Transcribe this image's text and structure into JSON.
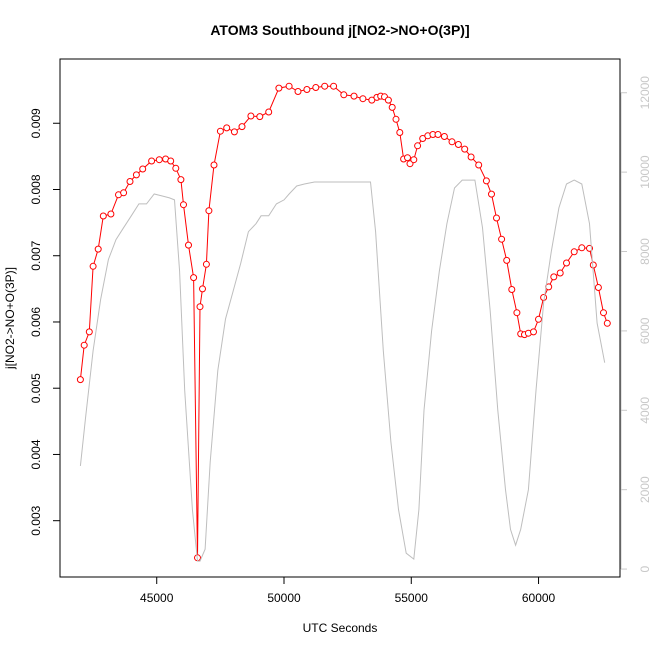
{
  "chart_data": {
    "type": "line",
    "title": "ATOM3 Southbound j[NO2->NO+O(3P)]",
    "xlabel": "UTC Seconds",
    "ylabel": "j[NO2->NO+O(3P)]",
    "y2label": "",
    "xlim": [
      41200,
      63200
    ],
    "ylim": [
      0.00215,
      0.00997
    ],
    "y2lim": [
      -200,
      12850
    ],
    "x_ticks": [
      45000,
      50000,
      55000,
      60000
    ],
    "y_ticks": [
      0.003,
      0.004,
      0.005,
      0.006,
      0.007,
      0.008,
      0.009
    ],
    "y_tick_labels": [
      "0.003",
      "0.004",
      "0.005",
      "0.006",
      "0.007",
      "0.008",
      "0.009"
    ],
    "y2_ticks": [
      0,
      2000,
      4000,
      6000,
      8000,
      10000,
      12000
    ],
    "grid": false,
    "legend": "none",
    "colors": {
      "primary": "#ff0000",
      "secondary": "#bebebe"
    },
    "series": [
      {
        "axis": "left",
        "style": "line+circles",
        "color": "#ff0000",
        "points": [
          [
            42000,
            0.00513
          ],
          [
            42150,
            0.00565
          ],
          [
            42350,
            0.00585
          ],
          [
            42500,
            0.00684
          ],
          [
            42700,
            0.0071
          ],
          [
            42900,
            0.0076
          ],
          [
            43200,
            0.00763
          ],
          [
            43500,
            0.00792
          ],
          [
            43700,
            0.00795
          ],
          [
            43950,
            0.00812
          ],
          [
            44200,
            0.00822
          ],
          [
            44450,
            0.00831
          ],
          [
            44800,
            0.00843
          ],
          [
            45100,
            0.00845
          ],
          [
            45350,
            0.00846
          ],
          [
            45550,
            0.00843
          ],
          [
            45750,
            0.00832
          ],
          [
            45950,
            0.00815
          ],
          [
            46050,
            0.00777
          ],
          [
            46250,
            0.00716
          ],
          [
            46450,
            0.00667
          ],
          [
            46600,
            0.00244
          ],
          [
            46700,
            0.00623
          ],
          [
            46800,
            0.0065
          ],
          [
            46950,
            0.00687
          ],
          [
            47050,
            0.00768
          ],
          [
            47250,
            0.00837
          ],
          [
            47500,
            0.00888
          ],
          [
            47750,
            0.00893
          ],
          [
            48050,
            0.00887
          ],
          [
            48350,
            0.00895
          ],
          [
            48700,
            0.00911
          ],
          [
            49050,
            0.0091
          ],
          [
            49400,
            0.00917
          ],
          [
            49800,
            0.00953
          ],
          [
            50200,
            0.00956
          ],
          [
            50550,
            0.00948
          ],
          [
            50900,
            0.00951
          ],
          [
            51250,
            0.00954
          ],
          [
            51600,
            0.00956
          ],
          [
            51950,
            0.00956
          ],
          [
            52350,
            0.00943
          ],
          [
            52750,
            0.00941
          ],
          [
            53100,
            0.00937
          ],
          [
            53450,
            0.00935
          ],
          [
            53650,
            0.00939
          ],
          [
            53800,
            0.00941
          ],
          [
            53950,
            0.0094
          ],
          [
            54100,
            0.00935
          ],
          [
            54250,
            0.00924
          ],
          [
            54400,
            0.00906
          ],
          [
            54550,
            0.00886
          ],
          [
            54700,
            0.00846
          ],
          [
            54850,
            0.00848
          ],
          [
            54950,
            0.00839
          ],
          [
            55100,
            0.00845
          ],
          [
            55250,
            0.00866
          ],
          [
            55450,
            0.00877
          ],
          [
            55650,
            0.00881
          ],
          [
            55850,
            0.00883
          ],
          [
            56050,
            0.00883
          ],
          [
            56300,
            0.0088
          ],
          [
            56600,
            0.00872
          ],
          [
            56850,
            0.00868
          ],
          [
            57100,
            0.00861
          ],
          [
            57350,
            0.00849
          ],
          [
            57650,
            0.00837
          ],
          [
            57950,
            0.00813
          ],
          [
            58150,
            0.00793
          ],
          [
            58350,
            0.00757
          ],
          [
            58550,
            0.00725
          ],
          [
            58750,
            0.00693
          ],
          [
            58950,
            0.00649
          ],
          [
            59150,
            0.00614
          ],
          [
            59300,
            0.00582
          ],
          [
            59450,
            0.00581
          ],
          [
            59600,
            0.00583
          ],
          [
            59800,
            0.00585
          ],
          [
            60000,
            0.00604
          ],
          [
            60200,
            0.00637
          ],
          [
            60400,
            0.00653
          ],
          [
            60600,
            0.00668
          ],
          [
            60850,
            0.00674
          ],
          [
            61100,
            0.00689
          ],
          [
            61400,
            0.00706
          ],
          [
            61700,
            0.00712
          ],
          [
            62000,
            0.00711
          ],
          [
            62150,
            0.00686
          ],
          [
            62350,
            0.00652
          ],
          [
            62550,
            0.00614
          ],
          [
            62700,
            0.00598
          ]
        ]
      },
      {
        "axis": "right",
        "style": "line",
        "color": "#bebebe",
        "points": [
          [
            42000,
            2600
          ],
          [
            42200,
            3800
          ],
          [
            42500,
            5500
          ],
          [
            42800,
            6800
          ],
          [
            43100,
            7800
          ],
          [
            43400,
            8300
          ],
          [
            43700,
            8600
          ],
          [
            44000,
            8900
          ],
          [
            44300,
            9200
          ],
          [
            44600,
            9200
          ],
          [
            44900,
            9450
          ],
          [
            45200,
            9400
          ],
          [
            45500,
            9350
          ],
          [
            45700,
            9300
          ],
          [
            45900,
            7500
          ],
          [
            46100,
            4500
          ],
          [
            46400,
            1500
          ],
          [
            46600,
            200
          ],
          [
            46700,
            200
          ],
          [
            46900,
            500
          ],
          [
            47100,
            2700
          ],
          [
            47400,
            5000
          ],
          [
            47700,
            6300
          ],
          [
            48000,
            7000
          ],
          [
            48300,
            7700
          ],
          [
            48600,
            8500
          ],
          [
            48900,
            8700
          ],
          [
            49100,
            8900
          ],
          [
            49400,
            8900
          ],
          [
            49700,
            9200
          ],
          [
            50000,
            9300
          ],
          [
            50200,
            9450
          ],
          [
            50500,
            9650
          ],
          [
            50800,
            9700
          ],
          [
            51200,
            9750
          ],
          [
            51600,
            9750
          ],
          [
            52000,
            9750
          ],
          [
            52400,
            9750
          ],
          [
            52800,
            9750
          ],
          [
            53100,
            9750
          ],
          [
            53400,
            9750
          ],
          [
            53600,
            8500
          ],
          [
            53900,
            5500
          ],
          [
            54200,
            3200
          ],
          [
            54500,
            1500
          ],
          [
            54800,
            400
          ],
          [
            55100,
            250
          ],
          [
            55300,
            1500
          ],
          [
            55500,
            4000
          ],
          [
            55800,
            6000
          ],
          [
            56100,
            7500
          ],
          [
            56400,
            8700
          ],
          [
            56700,
            9600
          ],
          [
            57000,
            9800
          ],
          [
            57200,
            9800
          ],
          [
            57500,
            9800
          ],
          [
            57800,
            8600
          ],
          [
            58100,
            6500
          ],
          [
            58400,
            4000
          ],
          [
            58700,
            2000
          ],
          [
            58900,
            1000
          ],
          [
            59100,
            600
          ],
          [
            59300,
            1000
          ],
          [
            59600,
            2000
          ],
          [
            59900,
            4500
          ],
          [
            60200,
            6700
          ],
          [
            60500,
            8000
          ],
          [
            60800,
            9100
          ],
          [
            61100,
            9700
          ],
          [
            61400,
            9800
          ],
          [
            61700,
            9700
          ],
          [
            62000,
            8700
          ],
          [
            62300,
            6200
          ],
          [
            62600,
            5200
          ]
        ]
      }
    ]
  }
}
